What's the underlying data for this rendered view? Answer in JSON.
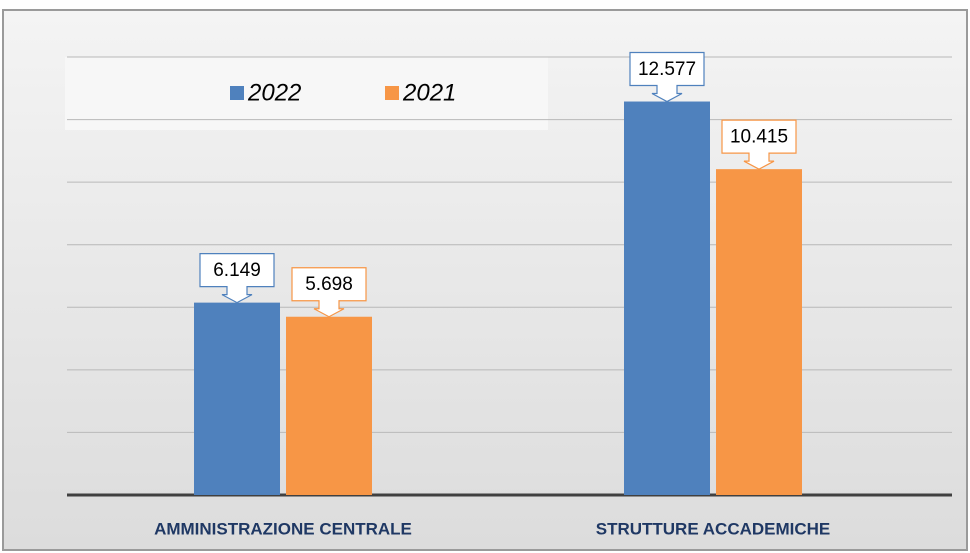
{
  "chart_data": {
    "type": "bar",
    "categories": [
      "AMMINISTRAZIONE CENTRALE",
      "STRUTTURE ACCADEMICHE"
    ],
    "series": [
      {
        "name": "2022",
        "color": "#4f81bd",
        "values": [
          6149,
          12577
        ],
        "value_labels": [
          "6.149",
          "12.577"
        ]
      },
      {
        "name": "2021",
        "color": "#f79646",
        "values": [
          5698,
          10415
        ],
        "value_labels": [
          "5.698",
          "10.415"
        ]
      }
    ],
    "ylim": [
      0,
      14000
    ],
    "yticks": [
      0,
      2000,
      4000,
      6000,
      8000,
      10000,
      12000,
      14000
    ],
    "grid": true
  }
}
